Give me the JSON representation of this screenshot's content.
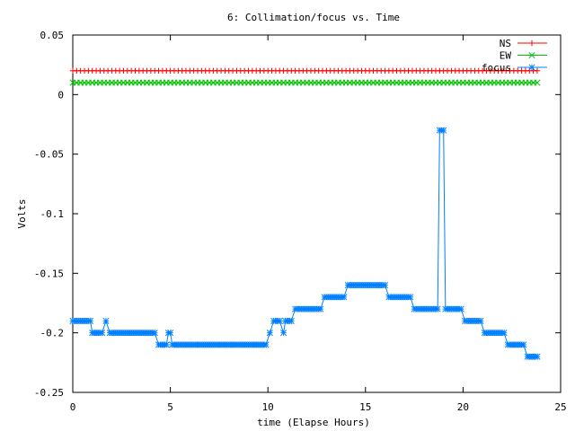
{
  "chart_data": {
    "type": "line",
    "title": "6: Collimation/focus vs. Time",
    "xlabel": "time (Elapse Hours)",
    "ylabel": "Volts",
    "xlim": [
      0,
      25
    ],
    "ylim": [
      -0.25,
      0.05
    ],
    "xticks": [
      0,
      5,
      10,
      15,
      20,
      25
    ],
    "xtick_labels": [
      "0",
      "5",
      "10",
      "15",
      "20",
      "25"
    ],
    "yticks": [
      0.05,
      0,
      -0.05,
      -0.1,
      -0.15,
      -0.2,
      -0.25
    ],
    "ytick_labels": [
      "0.05",
      "0",
      "-0.05",
      "-0.1",
      "-0.15",
      "-0.2",
      "-0.25"
    ],
    "grid": false,
    "legend_position": "top-right",
    "series": [
      {
        "name": "NS",
        "color": "#ff0000",
        "marker": "plus",
        "constant": {
          "x_start": 0,
          "x_end": 23.8,
          "step": 0.2,
          "y": 0.02
        }
      },
      {
        "name": "EW",
        "color": "#00c000",
        "marker": "cross",
        "constant": {
          "x_start": 0,
          "x_end": 23.8,
          "step": 0.2,
          "y": 0.01
        }
      },
      {
        "name": "focus",
        "color": "#0080ff",
        "marker": "star",
        "segments": [
          {
            "x_start": 0.0,
            "x_end": 0.9,
            "y": -0.19
          },
          {
            "x_start": 1.0,
            "x_end": 1.5,
            "y": -0.2
          },
          {
            "x_start": 1.7,
            "x_end": 1.7,
            "y": -0.19
          },
          {
            "x_start": 1.9,
            "x_end": 4.2,
            "y": -0.2
          },
          {
            "x_start": 4.4,
            "x_end": 4.8,
            "y": -0.21
          },
          {
            "x_start": 4.9,
            "x_end": 5.0,
            "y": -0.2
          },
          {
            "x_start": 5.1,
            "x_end": 9.9,
            "y": -0.21
          },
          {
            "x_start": 10.1,
            "x_end": 10.1,
            "y": -0.2
          },
          {
            "x_start": 10.3,
            "x_end": 10.6,
            "y": -0.19
          },
          {
            "x_start": 10.8,
            "x_end": 10.8,
            "y": -0.2
          },
          {
            "x_start": 10.9,
            "x_end": 11.2,
            "y": -0.19
          },
          {
            "x_start": 11.4,
            "x_end": 12.7,
            "y": -0.18
          },
          {
            "x_start": 12.9,
            "x_end": 13.9,
            "y": -0.17
          },
          {
            "x_start": 14.1,
            "x_end": 16.0,
            "y": -0.16
          },
          {
            "x_start": 16.2,
            "x_end": 17.3,
            "y": -0.17
          },
          {
            "x_start": 17.5,
            "x_end": 18.7,
            "y": -0.18
          },
          {
            "x_start": 18.8,
            "x_end": 19.0,
            "y": -0.03
          },
          {
            "x_start": 19.1,
            "x_end": 19.9,
            "y": -0.18
          },
          {
            "x_start": 20.1,
            "x_end": 20.9,
            "y": -0.19
          },
          {
            "x_start": 21.1,
            "x_end": 22.1,
            "y": -0.2
          },
          {
            "x_start": 22.3,
            "x_end": 23.1,
            "y": -0.21
          },
          {
            "x_start": 23.3,
            "x_end": 23.8,
            "y": -0.22
          }
        ]
      }
    ]
  }
}
